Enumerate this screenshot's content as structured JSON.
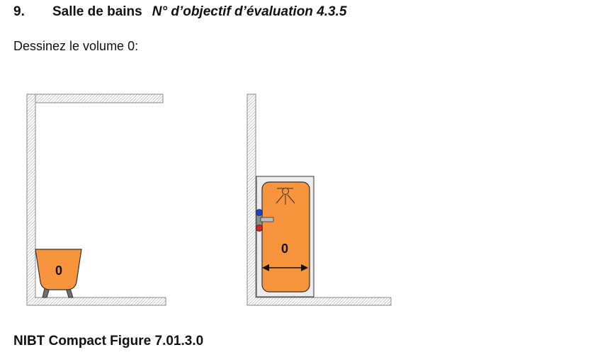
{
  "heading": {
    "number": "9.",
    "title": "Salle de bains",
    "subtitle": "N° d’objectif d’évaluation 4.3.5"
  },
  "instruction": "Dessinez le volume 0:",
  "figure": {
    "left_label": "0",
    "right_label": "0"
  },
  "caption": "NIBT Compact Figure 7.01.3.0",
  "colors": {
    "fixture_orange": "#F7943D",
    "wall_hatch": "#9a9a9a",
    "hot_tap": "#e0201c",
    "cold_tap": "#1c3fd8"
  }
}
